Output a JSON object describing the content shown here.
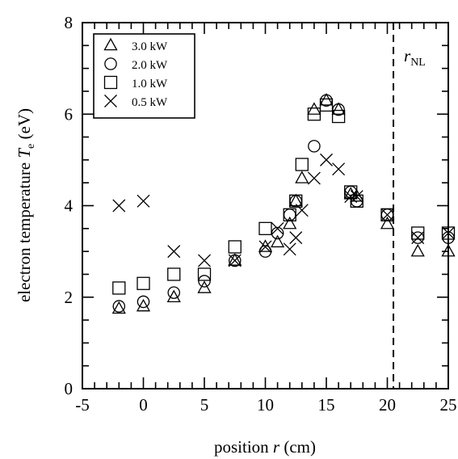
{
  "chart_data": {
    "type": "scatter",
    "xlabel": "position r (cm)",
    "xlabel_parts": {
      "pre": "position ",
      "var": "r",
      "post": " (cm)"
    },
    "ylabel": "electron temperature Te (eV)",
    "ylabel_parts": {
      "pre": "electron temperature ",
      "var": "T",
      "sub": "e",
      "post": " (eV)"
    },
    "xlim": [
      -5,
      25
    ],
    "ylim": [
      0,
      8
    ],
    "x_ticks": [
      -5,
      0,
      5,
      10,
      15,
      20,
      25
    ],
    "y_ticks": [
      0,
      2,
      4,
      6,
      8
    ],
    "grid": false,
    "legend_position": "top-left",
    "annotation": {
      "text": "r",
      "sub": "NL",
      "x": 20.5
    },
    "series": [
      {
        "name": "3.0 kW",
        "marker": "triangle",
        "x": [
          -2,
          0,
          2.5,
          5,
          7.5,
          10,
          11,
          12,
          12.5,
          13,
          14,
          15,
          16,
          17,
          17.5,
          20,
          22.5,
          25
        ],
        "y": [
          1.75,
          1.8,
          2.0,
          2.2,
          2.8,
          3.1,
          3.2,
          3.6,
          4.1,
          4.6,
          6.1,
          6.3,
          6.1,
          4.25,
          4.2,
          3.6,
          3.0,
          3.0
        ]
      },
      {
        "name": "2.0 kW",
        "marker": "circle",
        "x": [
          -2,
          0,
          2.5,
          5,
          7.5,
          10,
          11,
          12,
          12.5,
          14,
          15,
          16,
          17,
          17.5,
          20,
          22.5,
          25
        ],
        "y": [
          1.8,
          1.9,
          2.1,
          2.35,
          2.8,
          3.0,
          3.4,
          3.8,
          4.1,
          5.3,
          6.3,
          6.1,
          4.3,
          4.1,
          3.8,
          3.3,
          3.3
        ]
      },
      {
        "name": "1.0 kW",
        "marker": "square",
        "x": [
          -2,
          0,
          2.5,
          5,
          7.5,
          10,
          12,
          12.5,
          13,
          14,
          15,
          16,
          17,
          17.5,
          20,
          22.5,
          25
        ],
        "y": [
          2.2,
          2.3,
          2.5,
          2.5,
          3.1,
          3.5,
          3.8,
          4.1,
          4.9,
          6.0,
          6.2,
          5.95,
          4.3,
          4.1,
          3.8,
          3.4,
          3.4
        ]
      },
      {
        "name": "0.5 kW",
        "marker": "cross",
        "x": [
          -2,
          0,
          2.5,
          5,
          7.5,
          10,
          11,
          12,
          12.5,
          13,
          14,
          15,
          16,
          17,
          17.5,
          20,
          22.5,
          25
        ],
        "y": [
          4.0,
          4.1,
          3.0,
          2.8,
          2.8,
          3.1,
          3.5,
          3.05,
          3.3,
          3.9,
          4.6,
          5.0,
          4.8,
          4.2,
          4.2,
          3.8,
          3.3,
          3.4
        ]
      }
    ]
  }
}
